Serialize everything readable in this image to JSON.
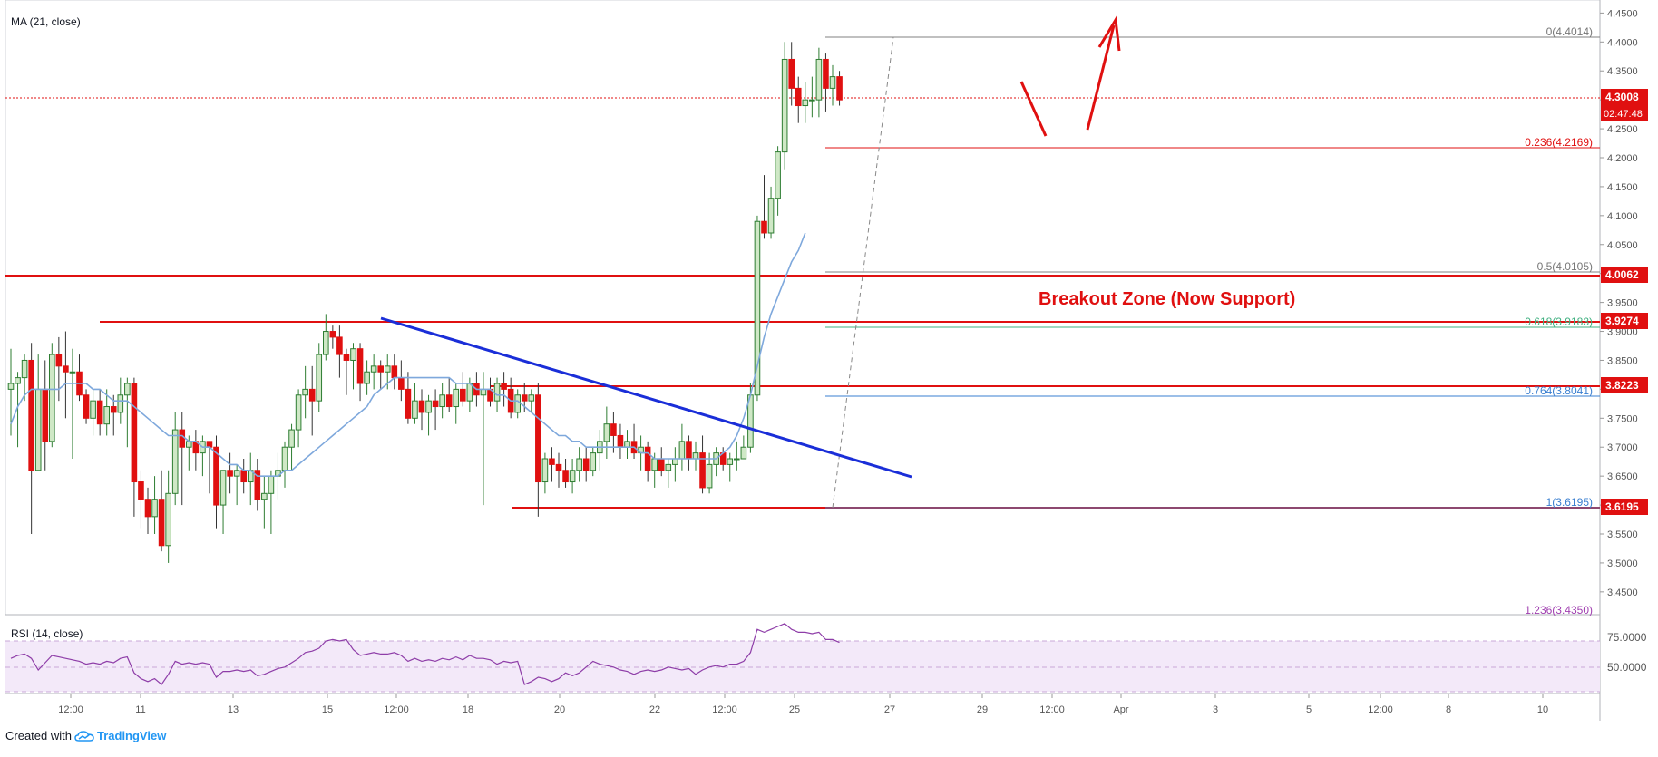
{
  "indicators": {
    "ma_label": "MA (21, close)",
    "rsi_label": "RSI (14, close)"
  },
  "annotation": {
    "breakout_text": "Breakout Zone (Now Support)"
  },
  "footer": {
    "created_with": "Created with",
    "brand": "TradingView"
  },
  "axis": {
    "price_ticks": [
      "4.4500",
      "4.4000",
      "4.3500",
      "4.3000",
      "4.2500",
      "4.2000",
      "4.1500",
      "4.1000",
      "4.0500",
      "4.0000",
      "3.9500",
      "3.9000",
      "3.8500",
      "3.8000",
      "3.7500",
      "3.7000",
      "3.6500",
      "3.6000",
      "3.5500",
      "3.5000",
      "3.4500"
    ],
    "rsi_ticks": [
      "75.0000",
      "50.0000"
    ],
    "time_labels": [
      "12:00",
      "11",
      "13",
      "15",
      "12:00",
      "18",
      "20",
      "22",
      "12:00",
      "25",
      "27",
      "29",
      "12:00",
      "Apr",
      "3",
      "5",
      "12:00",
      "8",
      "10"
    ]
  },
  "price_tags": {
    "last_price": "4.3008",
    "countdown": "02:47:48",
    "levels": [
      "4.0062",
      "3.9274",
      "3.8223",
      "3.6195"
    ]
  },
  "fib_labels": {
    "f0": "0(4.4014)",
    "f236": "0.236(4.2169)",
    "f5": "0.5(4.0105)",
    "f618": "0.618(3.9183)",
    "f764": "0.764(3.8041)",
    "f1": "1(3.6195)",
    "f1236": "1.236(3.4350)"
  },
  "colors": {
    "up_body": "#cfe8c6",
    "up_border": "#2e7d32",
    "down": "#e01010",
    "ma": "#7ea8dc",
    "rsi": "#8e3da8",
    "trendline": "#1a2ed8",
    "support": "#e01010"
  },
  "chart_data": {
    "type": "candlestick",
    "y_range": [
      3.42,
      4.46
    ],
    "rsi_range": [
      35,
      85
    ],
    "ohlc": [
      [
        3.8,
        3.87,
        3.72,
        3.81
      ],
      [
        3.81,
        3.83,
        3.7,
        3.82
      ],
      [
        3.82,
        3.86,
        3.78,
        3.85
      ],
      [
        3.85,
        3.88,
        3.55,
        3.66
      ],
      [
        3.66,
        3.86,
        3.66,
        3.8
      ],
      [
        3.8,
        3.85,
        3.66,
        3.71
      ],
      [
        3.71,
        3.88,
        3.7,
        3.86
      ],
      [
        3.86,
        3.89,
        3.78,
        3.84
      ],
      [
        3.84,
        3.9,
        3.75,
        3.83
      ],
      [
        3.83,
        3.87,
        3.68,
        3.83
      ],
      [
        3.83,
        3.86,
        3.78,
        3.79
      ],
      [
        3.79,
        3.8,
        3.74,
        3.75
      ],
      [
        3.75,
        3.8,
        3.72,
        3.78
      ],
      [
        3.78,
        3.8,
        3.72,
        3.74
      ],
      [
        3.74,
        3.8,
        3.72,
        3.77
      ],
      [
        3.77,
        3.79,
        3.72,
        3.76
      ],
      [
        3.76,
        3.82,
        3.74,
        3.79
      ],
      [
        3.79,
        3.82,
        3.7,
        3.81
      ],
      [
        3.81,
        3.82,
        3.58,
        3.64
      ],
      [
        3.64,
        3.66,
        3.56,
        3.61
      ],
      [
        3.61,
        3.63,
        3.55,
        3.58
      ],
      [
        3.58,
        3.65,
        3.55,
        3.61
      ],
      [
        3.61,
        3.66,
        3.52,
        3.53
      ],
      [
        3.53,
        3.66,
        3.5,
        3.62
      ],
      [
        3.62,
        3.76,
        3.6,
        3.73
      ],
      [
        3.73,
        3.76,
        3.6,
        3.7
      ],
      [
        3.7,
        3.72,
        3.66,
        3.71
      ],
      [
        3.71,
        3.73,
        3.66,
        3.69
      ],
      [
        3.69,
        3.72,
        3.65,
        3.71
      ],
      [
        3.71,
        3.71,
        3.62,
        3.7
      ],
      [
        3.7,
        3.72,
        3.56,
        3.6
      ],
      [
        3.6,
        3.66,
        3.55,
        3.66
      ],
      [
        3.66,
        3.69,
        3.62,
        3.65
      ],
      [
        3.65,
        3.67,
        3.6,
        3.66
      ],
      [
        3.66,
        3.68,
        3.62,
        3.64
      ],
      [
        3.64,
        3.69,
        3.6,
        3.66
      ],
      [
        3.66,
        3.68,
        3.59,
        3.61
      ],
      [
        3.61,
        3.65,
        3.56,
        3.62
      ],
      [
        3.62,
        3.66,
        3.55,
        3.65
      ],
      [
        3.65,
        3.69,
        3.61,
        3.66
      ],
      [
        3.66,
        3.71,
        3.63,
        3.7
      ],
      [
        3.7,
        3.74,
        3.66,
        3.73
      ],
      [
        3.73,
        3.8,
        3.7,
        3.79
      ],
      [
        3.79,
        3.84,
        3.75,
        3.8
      ],
      [
        3.8,
        3.84,
        3.72,
        3.78
      ],
      [
        3.78,
        3.88,
        3.76,
        3.86
      ],
      [
        3.86,
        3.93,
        3.85,
        3.9
      ],
      [
        3.9,
        3.91,
        3.87,
        3.89
      ],
      [
        3.89,
        3.91,
        3.82,
        3.86
      ],
      [
        3.86,
        3.87,
        3.79,
        3.85
      ],
      [
        3.85,
        3.88,
        3.8,
        3.87
      ],
      [
        3.87,
        3.88,
        3.78,
        3.81
      ],
      [
        3.81,
        3.85,
        3.79,
        3.83
      ],
      [
        3.83,
        3.86,
        3.8,
        3.84
      ],
      [
        3.84,
        3.85,
        3.8,
        3.83
      ],
      [
        3.83,
        3.86,
        3.8,
        3.84
      ],
      [
        3.84,
        3.86,
        3.8,
        3.82
      ],
      [
        3.82,
        3.85,
        3.78,
        3.8
      ],
      [
        3.8,
        3.83,
        3.74,
        3.75
      ],
      [
        3.75,
        3.81,
        3.74,
        3.78
      ],
      [
        3.78,
        3.8,
        3.73,
        3.76
      ],
      [
        3.76,
        3.79,
        3.72,
        3.78
      ],
      [
        3.78,
        3.8,
        3.73,
        3.77
      ],
      [
        3.77,
        3.81,
        3.75,
        3.79
      ],
      [
        3.79,
        3.82,
        3.76,
        3.77
      ],
      [
        3.77,
        3.81,
        3.74,
        3.8
      ],
      [
        3.8,
        3.83,
        3.77,
        3.78
      ],
      [
        3.78,
        3.82,
        3.76,
        3.81
      ],
      [
        3.81,
        3.83,
        3.77,
        3.79
      ],
      [
        3.79,
        3.83,
        3.6,
        3.8
      ],
      [
        3.8,
        3.82,
        3.77,
        3.78
      ],
      [
        3.78,
        3.82,
        3.76,
        3.81
      ],
      [
        3.81,
        3.83,
        3.77,
        3.8
      ],
      [
        3.8,
        3.82,
        3.75,
        3.76
      ],
      [
        3.76,
        3.8,
        3.75,
        3.79
      ],
      [
        3.79,
        3.81,
        3.76,
        3.78
      ],
      [
        3.78,
        3.8,
        3.76,
        3.79
      ],
      [
        3.79,
        3.81,
        3.58,
        3.64
      ],
      [
        3.64,
        3.69,
        3.62,
        3.68
      ],
      [
        3.68,
        3.7,
        3.64,
        3.67
      ],
      [
        3.67,
        3.69,
        3.63,
        3.66
      ],
      [
        3.66,
        3.68,
        3.63,
        3.64
      ],
      [
        3.64,
        3.68,
        3.62,
        3.66
      ],
      [
        3.66,
        3.7,
        3.64,
        3.68
      ],
      [
        3.68,
        3.7,
        3.64,
        3.66
      ],
      [
        3.66,
        3.7,
        3.65,
        3.69
      ],
      [
        3.69,
        3.73,
        3.66,
        3.71
      ],
      [
        3.71,
        3.77,
        3.68,
        3.74
      ],
      [
        3.74,
        3.76,
        3.69,
        3.72
      ],
      [
        3.72,
        3.74,
        3.68,
        3.7
      ],
      [
        3.7,
        3.73,
        3.68,
        3.71
      ],
      [
        3.71,
        3.74,
        3.68,
        3.69
      ],
      [
        3.69,
        3.72,
        3.66,
        3.7
      ],
      [
        3.7,
        3.71,
        3.64,
        3.66
      ],
      [
        3.66,
        3.69,
        3.63,
        3.68
      ],
      [
        3.68,
        3.7,
        3.65,
        3.66
      ],
      [
        3.66,
        3.68,
        3.63,
        3.67
      ],
      [
        3.67,
        3.7,
        3.64,
        3.68
      ],
      [
        3.68,
        3.74,
        3.66,
        3.71
      ],
      [
        3.71,
        3.72,
        3.66,
        3.68
      ],
      [
        3.68,
        3.71,
        3.66,
        3.69
      ],
      [
        3.69,
        3.72,
        3.62,
        3.63
      ],
      [
        3.63,
        3.69,
        3.62,
        3.67
      ],
      [
        3.67,
        3.7,
        3.65,
        3.69
      ],
      [
        3.69,
        3.7,
        3.66,
        3.67
      ],
      [
        3.67,
        3.69,
        3.64,
        3.68
      ],
      [
        3.68,
        3.71,
        3.66,
        3.68
      ],
      [
        3.68,
        3.72,
        3.68,
        3.7
      ],
      [
        3.7,
        3.81,
        3.69,
        3.79
      ],
      [
        3.79,
        4.1,
        3.78,
        4.09
      ],
      [
        4.09,
        4.17,
        4.06,
        4.07
      ],
      [
        4.07,
        4.15,
        4.06,
        4.13
      ],
      [
        4.13,
        4.22,
        4.1,
        4.21
      ],
      [
        4.21,
        4.4,
        4.18,
        4.37
      ],
      [
        4.37,
        4.4,
        4.29,
        4.32
      ],
      [
        4.32,
        4.34,
        4.26,
        4.29
      ],
      [
        4.29,
        4.33,
        4.26,
        4.3
      ],
      [
        4.3,
        4.34,
        4.27,
        4.3
      ],
      [
        4.3,
        4.39,
        4.27,
        4.37
      ],
      [
        4.37,
        4.38,
        4.28,
        4.32
      ],
      [
        4.32,
        4.36,
        4.29,
        4.34
      ],
      [
        4.34,
        4.35,
        4.29,
        4.3
      ]
    ],
    "ma": [
      3.74,
      3.77,
      3.79,
      3.8,
      3.8,
      3.8,
      3.8,
      3.8,
      3.81,
      3.81,
      3.81,
      3.81,
      3.8,
      3.8,
      3.79,
      3.78,
      3.78,
      3.78,
      3.77,
      3.76,
      3.75,
      3.74,
      3.73,
      3.72,
      3.72,
      3.72,
      3.71,
      3.71,
      3.7,
      3.7,
      3.69,
      3.68,
      3.67,
      3.67,
      3.66,
      3.66,
      3.65,
      3.65,
      3.65,
      3.65,
      3.66,
      3.66,
      3.67,
      3.68,
      3.69,
      3.7,
      3.71,
      3.72,
      3.73,
      3.74,
      3.75,
      3.76,
      3.77,
      3.79,
      3.8,
      3.81,
      3.82,
      3.82,
      3.82,
      3.82,
      3.82,
      3.82,
      3.82,
      3.82,
      3.82,
      3.81,
      3.81,
      3.81,
      3.8,
      3.8,
      3.8,
      3.79,
      3.79,
      3.78,
      3.78,
      3.77,
      3.76,
      3.75,
      3.74,
      3.73,
      3.72,
      3.72,
      3.71,
      3.71,
      3.7,
      3.7,
      3.7,
      3.7,
      3.7,
      3.7,
      3.7,
      3.7,
      3.69,
      3.69,
      3.68,
      3.68,
      3.68,
      3.68,
      3.68,
      3.68,
      3.68,
      3.68,
      3.68,
      3.68,
      3.69,
      3.7,
      3.72,
      3.75,
      3.79,
      3.84,
      3.89,
      3.93,
      3.96,
      3.99,
      4.02,
      4.04,
      4.07
    ],
    "rsi": [
      58,
      60,
      61,
      58,
      50,
      55,
      60,
      59,
      58,
      57,
      56,
      54,
      55,
      54,
      56,
      55,
      58,
      59,
      48,
      44,
      42,
      44,
      40,
      47,
      56,
      54,
      55,
      54,
      55,
      54,
      45,
      49,
      49,
      50,
      49,
      50,
      46,
      47,
      49,
      51,
      52,
      55,
      58,
      62,
      63,
      65,
      70,
      71,
      70,
      71,
      64,
      60,
      61,
      62,
      61,
      61,
      62,
      60,
      56,
      58,
      56,
      57,
      56,
      58,
      57,
      59,
      57,
      60,
      58,
      58,
      57,
      54,
      56,
      55,
      56,
      40,
      42,
      45,
      44,
      42,
      44,
      48,
      46,
      48,
      52,
      56,
      54,
      53,
      52,
      50,
      49,
      47,
      49,
      50,
      49,
      50,
      52,
      51,
      50,
      51,
      47,
      50,
      52,
      53,
      52,
      54,
      54,
      56,
      62,
      78,
      76,
      78,
      80,
      82,
      78,
      76,
      76,
      75,
      76,
      71,
      71,
      69
    ],
    "fib_levels": [
      4.4014,
      4.2169,
      4.0105,
      3.9183,
      3.8041,
      3.6195,
      3.435
    ],
    "support_levels": [
      4.0062,
      3.9274,
      3.8223,
      3.6195
    ],
    "last_price": 4.3008
  }
}
